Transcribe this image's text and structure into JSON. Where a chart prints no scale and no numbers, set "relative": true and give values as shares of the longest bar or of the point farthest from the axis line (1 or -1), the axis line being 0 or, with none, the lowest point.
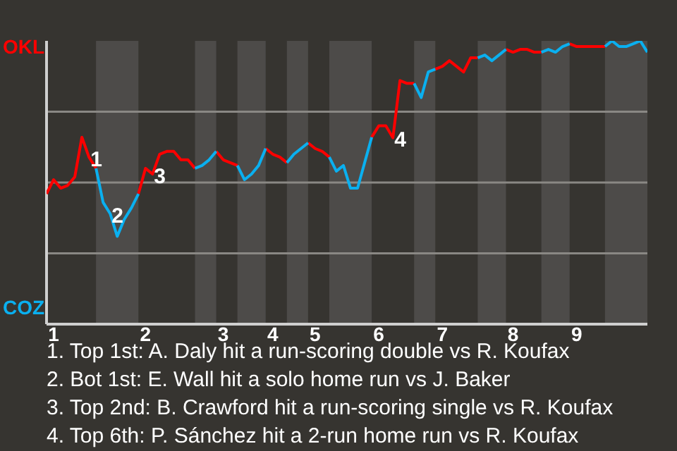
{
  "chart_data": {
    "type": "line",
    "relative": true,
    "categories": [
      null,
      "1",
      null,
      null,
      null,
      null,
      null,
      null,
      null,
      null,
      null,
      null,
      null,
      null,
      "2",
      null,
      null,
      null,
      null,
      null,
      null,
      null,
      null,
      null,
      null,
      "3",
      null,
      null,
      null,
      null,
      null,
      null,
      "4",
      null,
      null,
      null,
      null,
      null,
      "5",
      null,
      null,
      null,
      null,
      null,
      null,
      null,
      null,
      "6",
      null,
      null,
      null,
      null,
      null,
      null,
      null,
      null,
      "7",
      null,
      null,
      null,
      null,
      null,
      null,
      null,
      null,
      null,
      "8",
      null,
      null,
      null,
      null,
      null,
      null,
      null,
      null,
      "9",
      null,
      null,
      null,
      null,
      null,
      null,
      null,
      null,
      null,
      null
    ],
    "series": [
      {
        "name": "OKL",
        "color": "#ff0000",
        "values": [
          0.46,
          0.51,
          0.48,
          0.49,
          0.52,
          0.66,
          0.59,
          0.55,
          null,
          null,
          null,
          null,
          null,
          0.46,
          0.55,
          0.53,
          0.6,
          0.61,
          0.61,
          0.58,
          0.58,
          0.55,
          null,
          null,
          0.61,
          0.58,
          0.57,
          0.56,
          null,
          null,
          null,
          0.62,
          0.6,
          0.59,
          0.57,
          null,
          null,
          0.64,
          0.62,
          0.61,
          0.59,
          null,
          null,
          null,
          null,
          null,
          0.66,
          0.7,
          0.7,
          0.658,
          0.86,
          0.85,
          0.85,
          null,
          null,
          0.9,
          0.91,
          0.93,
          0.91,
          0.89,
          0.94,
          0.94,
          null,
          null,
          null,
          0.97,
          0.96,
          0.97,
          0.97,
          0.96,
          0.96,
          null,
          null,
          null,
          0.99,
          0.98,
          0.98,
          0.98,
          0.98,
          0.98,
          null,
          null,
          null,
          null,
          null,
          null
        ]
      },
      {
        "name": "COZ",
        "color": "#0ab0f0",
        "values": [
          null,
          null,
          null,
          null,
          null,
          null,
          null,
          0.55,
          0.43,
          0.39,
          0.31,
          0.37,
          0.41,
          0.46,
          null,
          null,
          null,
          null,
          null,
          null,
          null,
          0.55,
          0.56,
          0.58,
          0.61,
          null,
          null,
          0.56,
          0.51,
          0.53,
          0.56,
          0.62,
          null,
          null,
          0.57,
          0.6,
          0.62,
          0.64,
          null,
          null,
          0.59,
          0.54,
          0.56,
          0.48,
          0.48,
          0.57,
          0.66,
          null,
          null,
          null,
          null,
          null,
          0.85,
          0.8,
          0.89,
          0.9,
          null,
          null,
          null,
          null,
          null,
          0.94,
          0.95,
          0.93,
          0.95,
          0.97,
          null,
          null,
          null,
          null,
          0.96,
          0.97,
          0.96,
          0.98,
          0.99,
          null,
          null,
          null,
          null,
          0.98,
          1,
          0.98,
          0.98,
          0.99,
          1,
          0.96
        ]
      }
    ],
    "ref_lines": [
      {
        "axis": "y",
        "value": 0.25,
        "color": "#8a8884"
      },
      {
        "axis": "y",
        "value": 0.5,
        "color": "#8a8884"
      },
      {
        "axis": "y",
        "value": 0.75,
        "color": "#8a8884"
      }
    ],
    "annotations": [
      {
        "text": "1",
        "y": 0.59
      },
      {
        "text": "2",
        "y": 0.39
      },
      {
        "text": "3",
        "y": 0.53
      },
      {
        "text": "4",
        "y": 0.658
      },
      "1. Top 1st: A. Daly hit a run-scoring double vs R. Koufax",
      "2. Bot 1st: E. Wall hit a solo home run vs J. Baker",
      "3. Top 2nd: B. Crawford hit a run-scoring single vs R. Koufax",
      "4. Top 6th: P. Sánchez hit a 2-run home run vs R. Koufax"
    ],
    "legend": "left"
  }
}
